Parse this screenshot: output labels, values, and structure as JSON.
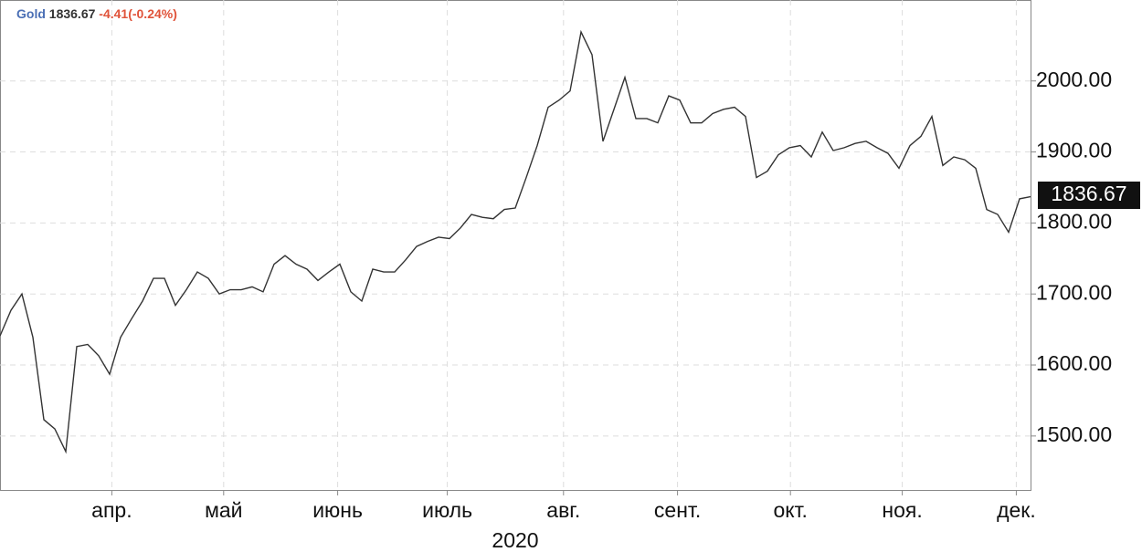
{
  "chart_data": {
    "type": "line",
    "symbol": "Gold",
    "price": "1836.67",
    "change": "-4.41(-0.24%)",
    "xlabel": "2020",
    "color": "#333333",
    "values": [
      1641,
      1677,
      1700,
      1639,
      1523,
      1510,
      1478,
      1626,
      1629,
      1613,
      1587,
      1639,
      1665,
      1690,
      1722,
      1722,
      1684,
      1706,
      1731,
      1722,
      1700,
      1706,
      1706,
      1710,
      1703,
      1742,
      1754,
      1742,
      1735,
      1719,
      1731,
      1742,
      1703,
      1690,
      1735,
      1731,
      1731,
      1748,
      1767,
      1774,
      1780,
      1778,
      1793,
      1812,
      1808,
      1806,
      1819,
      1821,
      1864,
      1909,
      1963,
      1973,
      1986,
      2069,
      2037,
      1915,
      1960,
      2005,
      1947,
      1947,
      1941,
      1979,
      1973,
      1941,
      1941,
      1954,
      1960,
      1963,
      1950,
      1864,
      1873,
      1896,
      1906,
      1909,
      1893,
      1928,
      1902,
      1906,
      1912,
      1915,
      1906,
      1898,
      1877,
      1909,
      1922,
      1950,
      1881,
      1893,
      1889,
      1877,
      1819,
      1812,
      1787,
      1834,
      1837
    ],
    "xlim": [
      0,
      94
    ],
    "xticks": [
      {
        "value": 10.2,
        "label": "апр."
      },
      {
        "value": 20.4,
        "label": "май"
      },
      {
        "value": 30.8,
        "label": "июнь"
      },
      {
        "value": 40.8,
        "label": "июль"
      },
      {
        "value": 51.4,
        "label": "авг."
      },
      {
        "value": 61.8,
        "label": "сент."
      },
      {
        "value": 72.1,
        "label": "окт."
      },
      {
        "value": 82.3,
        "label": "ноя."
      },
      {
        "value": 92.7,
        "label": "дек."
      }
    ],
    "ylim": [
      1424,
      2114
    ],
    "yticks": [
      {
        "value": 1500,
        "label": "1500.00"
      },
      {
        "value": 1600,
        "label": "1600.00"
      },
      {
        "value": 1700,
        "label": "1700.00"
      },
      {
        "value": 1800,
        "label": "1800.00"
      },
      {
        "value": 1900,
        "label": "1900.00"
      },
      {
        "value": 2000,
        "label": "2000.00"
      }
    ],
    "grid": true
  }
}
